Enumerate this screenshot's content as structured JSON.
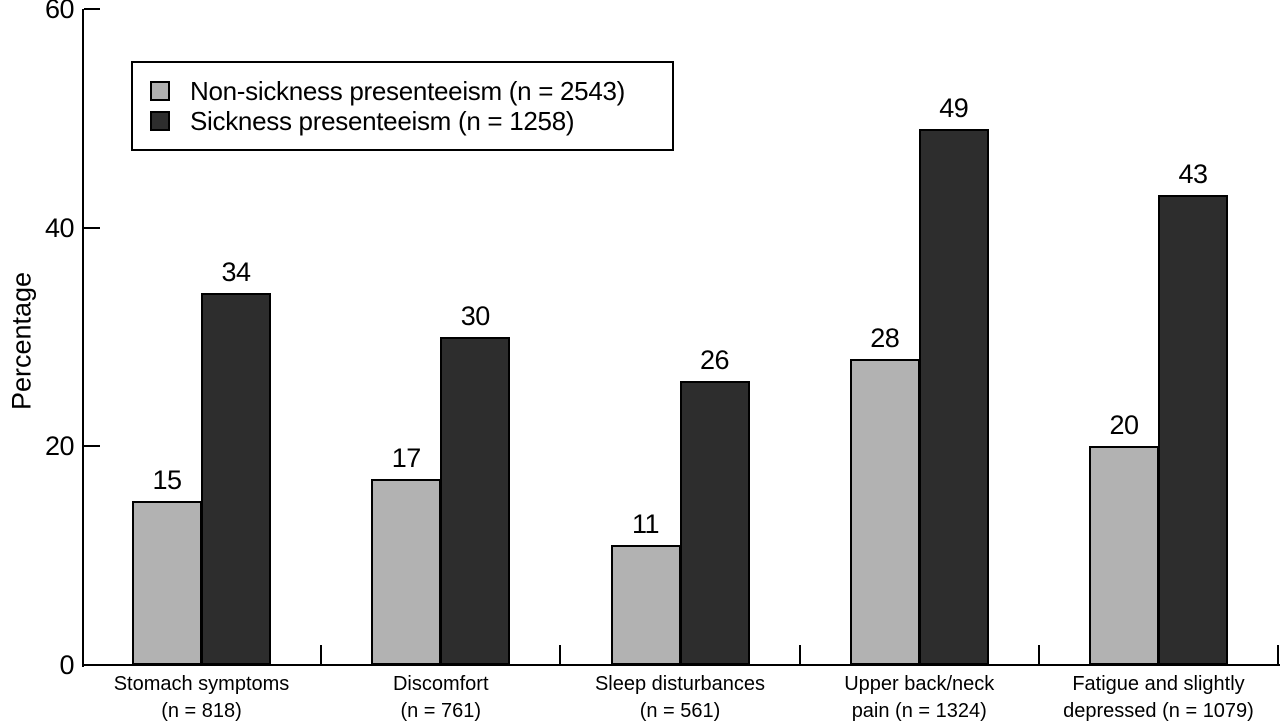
{
  "chart_data": {
    "type": "bar",
    "title": "",
    "ylabel": "Percentage",
    "ylim": [
      0,
      60
    ],
    "yticks": [
      "0",
      "20",
      "40",
      "60"
    ],
    "grid": false,
    "legend_position": "top-left-inside",
    "categories": [
      {
        "label": "Stomach symptoms",
        "sublabel": "(n = 818)"
      },
      {
        "label": "Discomfort",
        "sublabel": "(n = 761)"
      },
      {
        "label": "Sleep disturbances",
        "sublabel": "(n = 561)"
      },
      {
        "label": "Upper back/neck",
        "sublabel": "pain (n = 1324)"
      },
      {
        "label": "Fatigue and slightly",
        "sublabel": "depressed (n = 1079)"
      }
    ],
    "series": [
      {
        "name": "Non-sickness presenteeism (n = 2543)",
        "color": "#b2b2b2",
        "values": [
          15,
          17,
          11,
          28,
          20
        ]
      },
      {
        "name": "Sickness presenteeism (n = 1258)",
        "color": "#2d2d2d",
        "values": [
          34,
          30,
          26,
          49,
          43
        ]
      }
    ]
  }
}
